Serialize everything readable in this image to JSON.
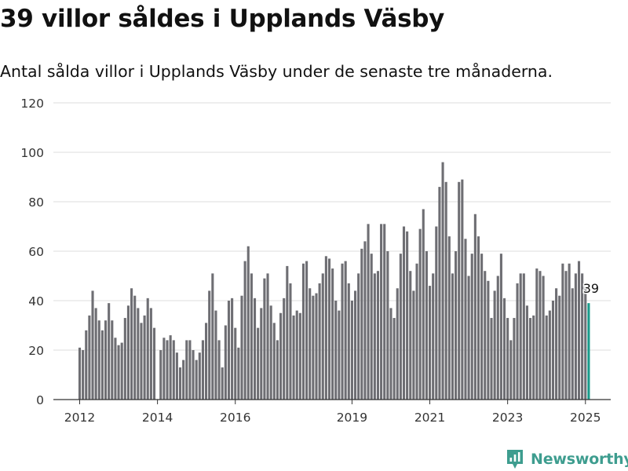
{
  "title": "39 villor såldes i Upplands Väsby",
  "subtitle": "Antal sålda villor i Upplands Väsby under de senaste tre månaderna.",
  "brand": {
    "name": "Newsworthy",
    "icon": "newsworthy-logo-icon",
    "color": "#3e9d8f"
  },
  "chart_data": {
    "type": "bar",
    "title": "39 villor såldes i Upplands Väsby",
    "subtitle": "Antal sålda villor i Upplands Väsby under de senaste tre månaderna.",
    "xlabel": "",
    "ylabel": "",
    "ylim": [
      0,
      120
    ],
    "yticks": [
      0,
      20,
      40,
      60,
      80,
      100,
      120
    ],
    "xticks": [
      {
        "label": "2012",
        "month_index": 0
      },
      {
        "label": "2014",
        "month_index": 24
      },
      {
        "label": "2016",
        "month_index": 48
      },
      {
        "label": "2019",
        "month_index": 84
      },
      {
        "label": "2021",
        "month_index": 108
      },
      {
        "label": "2023",
        "month_index": 132
      },
      {
        "label": "2025",
        "month_index": 156
      }
    ],
    "grid": true,
    "frequency": "monthly",
    "first_period": "2012-01",
    "last_period": "2025-01",
    "bar_color": "#6e6e73",
    "highlight_color": "#1a9b8b",
    "highlight_label": "39",
    "values": [
      21,
      20,
      28,
      34,
      44,
      37,
      32,
      28,
      32,
      39,
      32,
      25,
      22,
      23,
      33,
      38,
      45,
      42,
      37,
      31,
      34,
      41,
      37,
      29,
      null,
      20,
      25,
      24,
      26,
      24,
      19,
      13,
      16,
      24,
      24,
      20,
      16,
      19,
      24,
      31,
      44,
      51,
      36,
      24,
      13,
      30,
      40,
      41,
      29,
      21,
      42,
      56,
      62,
      51,
      41,
      29,
      37,
      49,
      51,
      38,
      31,
      24,
      35,
      41,
      54,
      47,
      34,
      36,
      35,
      55,
      56,
      45,
      42,
      43,
      47,
      51,
      58,
      57,
      53,
      40,
      36,
      55,
      56,
      47,
      40,
      44,
      51,
      61,
      64,
      71,
      59,
      51,
      52,
      71,
      71,
      60,
      37,
      33,
      45,
      59,
      70,
      68,
      52,
      44,
      55,
      69,
      77,
      60,
      46,
      51,
      70,
      86,
      96,
      88,
      66,
      51,
      60,
      88,
      89,
      65,
      50,
      59,
      75,
      66,
      59,
      52,
      48,
      33,
      44,
      50,
      59,
      41,
      33,
      24,
      33,
      47,
      51,
      51,
      38,
      33,
      34,
      53,
      52,
      50,
      34,
      36,
      40,
      45,
      42,
      55,
      52,
      55,
      45,
      51,
      56,
      51,
      47,
      39
    ]
  }
}
